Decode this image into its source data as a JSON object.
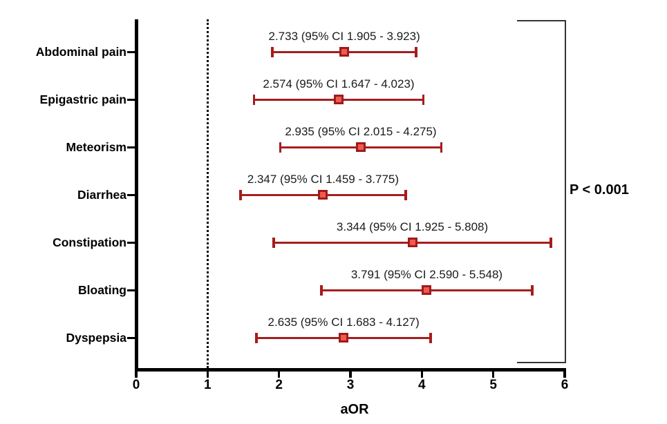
{
  "chart_data": {
    "type": "scatter",
    "plot_style": "forest-plot",
    "xlabel": "aOR",
    "xlim": [
      0,
      6
    ],
    "x_tick_labels": [
      "0",
      "1",
      "2",
      "3",
      "4",
      "5",
      "6"
    ],
    "reference_line_x": 1,
    "p_annotation": "P < 0.001",
    "grid": false,
    "legend": "none",
    "rows": [
      {
        "label": "Abdominal pain",
        "aor": 2.733,
        "ci_low": 1.905,
        "ci_high": 3.923,
        "annotation": "2.733 (95% CI 1.905 - 3.923)"
      },
      {
        "label": "Epigastric pain",
        "aor": 2.574,
        "ci_low": 1.647,
        "ci_high": 4.023,
        "annotation": "2.574 (95% CI 1.647 - 4.023)"
      },
      {
        "label": "Meteorism",
        "aor": 2.935,
        "ci_low": 2.015,
        "ci_high": 4.275,
        "annotation": "2.935 (95% CI 2.015 - 4.275)"
      },
      {
        "label": "Diarrhea",
        "aor": 2.347,
        "ci_low": 1.459,
        "ci_high": 3.775,
        "annotation": "2.347 (95% CI 1.459 - 3.775)"
      },
      {
        "label": "Constipation",
        "aor": 3.344,
        "ci_low": 1.925,
        "ci_high": 5.808,
        "annotation": "3.344 (95% CI 1.925 - 5.808)"
      },
      {
        "label": "Bloating",
        "aor": 3.791,
        "ci_low": 2.59,
        "ci_high": 5.548,
        "annotation": "3.791 (95% CI 2.590 - 5.548)"
      },
      {
        "label": "Dyspepsia",
        "aor": 2.635,
        "ci_low": 1.683,
        "ci_high": 4.127,
        "annotation": "2.635 (95% CI 1.683 - 4.127)"
      }
    ],
    "colors": {
      "error_bar": "#A51D1D",
      "marker_fill": "#F2594E",
      "marker_border": "#9E1B1B",
      "axis": "#000000",
      "annotation_text": "#1A1A1A",
      "bracket": "#333333",
      "background": "#FFFFFF"
    }
  }
}
